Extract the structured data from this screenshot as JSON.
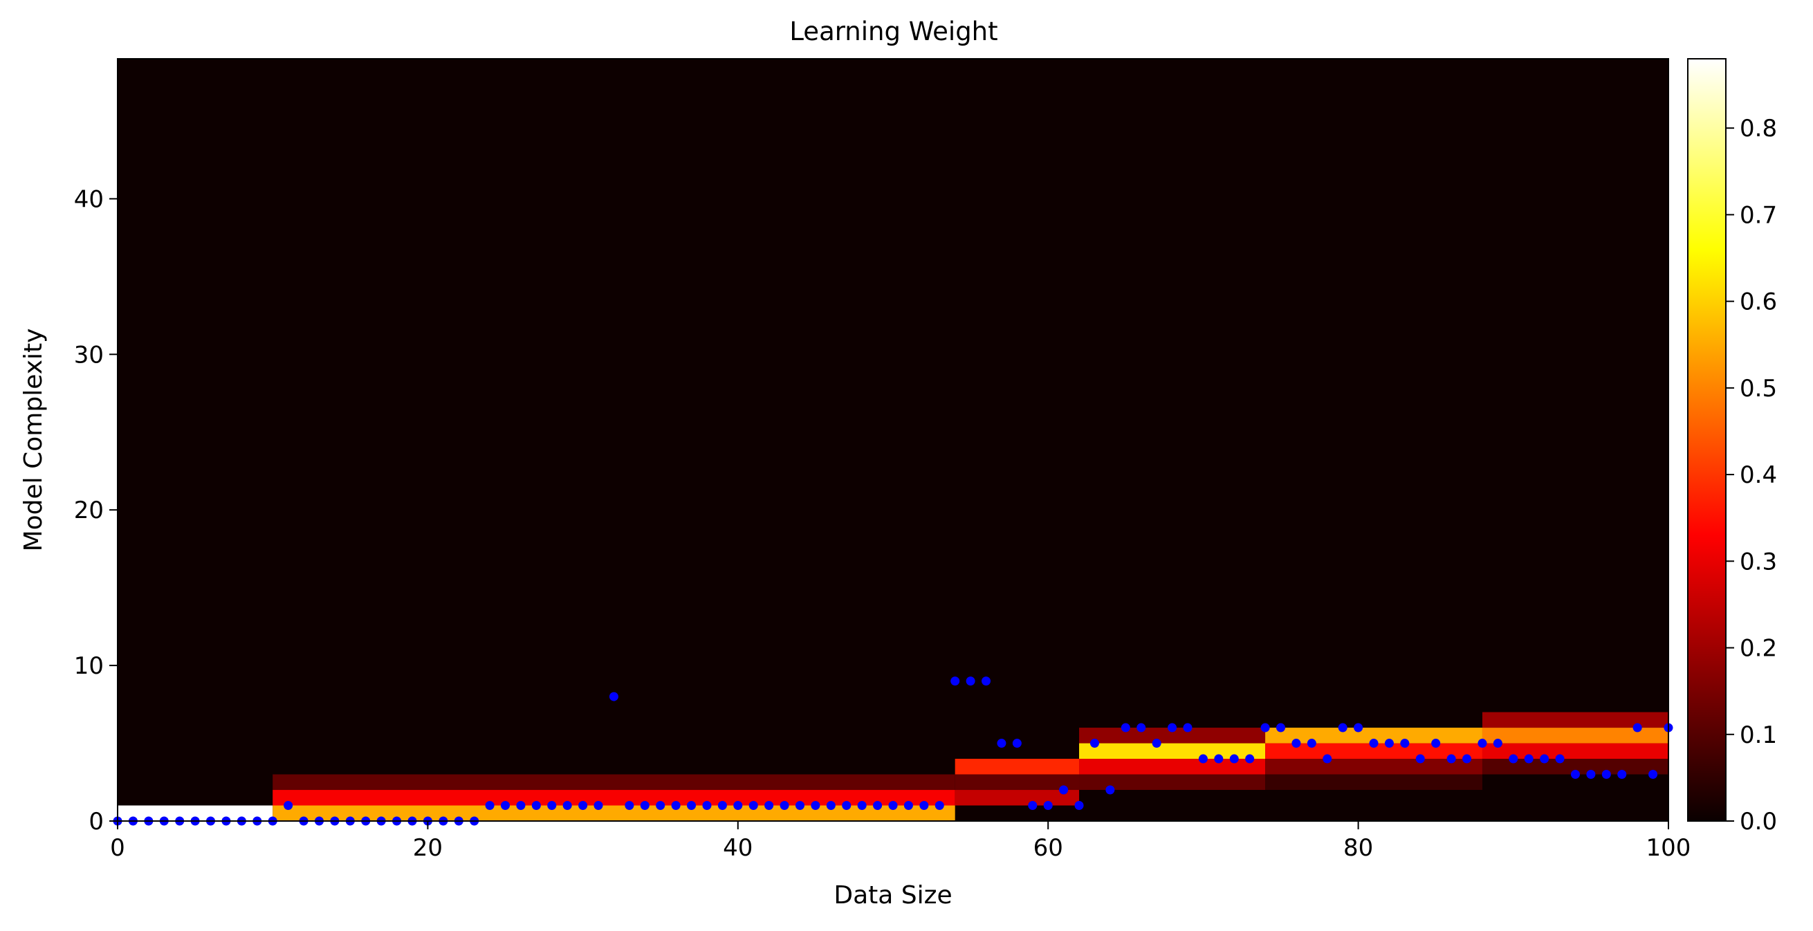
{
  "chart_data": {
    "type": "heatmap",
    "title": "Learning Weight",
    "xlabel": "Data Size",
    "ylabel": "Model Complexity",
    "xlim": [
      0,
      100
    ],
    "ylim": [
      0,
      49
    ],
    "x_ticks": [
      "0",
      "20",
      "40",
      "60",
      "80",
      "100"
    ],
    "y_ticks": [
      "0",
      "10",
      "20",
      "30",
      "40"
    ],
    "colorbar": {
      "colormap": "hot",
      "range": [
        0.0,
        0.88
      ],
      "ticks": [
        "0.0",
        "0.1",
        "0.2",
        "0.3",
        "0.4",
        "0.5",
        "0.6",
        "0.7",
        "0.8"
      ]
    },
    "heatmap_bands": [
      {
        "x_range": [
          0,
          10
        ],
        "rows": [
          {
            "y": 0,
            "value": 0.88
          }
        ]
      },
      {
        "x_range": [
          10,
          54
        ],
        "rows": [
          {
            "y": 0,
            "value": 0.55
          },
          {
            "y": 1,
            "value": 0.32
          },
          {
            "y": 2,
            "value": 0.12
          }
        ]
      },
      {
        "x_range": [
          54,
          62
        ],
        "rows": [
          {
            "y": 1,
            "value": 0.25
          },
          {
            "y": 2,
            "value": 0.12
          },
          {
            "y": 3,
            "value": 0.38
          }
        ]
      },
      {
        "x_range": [
          62,
          74
        ],
        "rows": [
          {
            "y": 2,
            "value": 0.12
          },
          {
            "y": 3,
            "value": 0.3
          },
          {
            "y": 4,
            "value": 0.62
          },
          {
            "y": 5,
            "value": 0.18
          }
        ]
      },
      {
        "x_range": [
          74,
          88
        ],
        "rows": [
          {
            "y": 2,
            "value": 0.06
          },
          {
            "y": 3,
            "value": 0.16
          },
          {
            "y": 4,
            "value": 0.35
          },
          {
            "y": 5,
            "value": 0.55
          }
        ]
      },
      {
        "x_range": [
          88,
          100
        ],
        "rows": [
          {
            "y": 3,
            "value": 0.1
          },
          {
            "y": 4,
            "value": 0.3
          },
          {
            "y": 5,
            "value": 0.5
          },
          {
            "y": 6,
            "value": 0.2
          }
        ]
      }
    ],
    "points": {
      "color": "#0000ff",
      "x": [
        0,
        1,
        2,
        3,
        4,
        5,
        6,
        7,
        8,
        9,
        10,
        11,
        12,
        13,
        14,
        15,
        16,
        17,
        18,
        19,
        20,
        21,
        22,
        23,
        24,
        25,
        26,
        27,
        28,
        29,
        30,
        31,
        32,
        33,
        34,
        35,
        36,
        37,
        38,
        39,
        40,
        41,
        42,
        43,
        44,
        45,
        46,
        47,
        48,
        49,
        50,
        51,
        52,
        53,
        54,
        55,
        56,
        57,
        58,
        59,
        60,
        61,
        62,
        63,
        64,
        65,
        66,
        67,
        68,
        69,
        70,
        71,
        72,
        73,
        74,
        75,
        76,
        77,
        78,
        79,
        80,
        81,
        82,
        83,
        84,
        85,
        86,
        87,
        88,
        89,
        90,
        91,
        92,
        93,
        94,
        95,
        96,
        97,
        98,
        99,
        100
      ],
      "y": [
        0,
        0,
        0,
        0,
        0,
        0,
        0,
        0,
        0,
        0,
        0,
        1,
        0,
        0,
        0,
        0,
        0,
        0,
        0,
        0,
        0,
        0,
        0,
        0,
        1,
        1,
        1,
        1,
        1,
        1,
        1,
        1,
        8,
        1,
        1,
        1,
        1,
        1,
        1,
        1,
        1,
        1,
        1,
        1,
        1,
        1,
        1,
        1,
        1,
        1,
        1,
        1,
        1,
        1,
        9,
        9,
        9,
        5,
        5,
        1,
        1,
        2,
        1,
        5,
        2,
        6,
        6,
        5,
        6,
        6,
        4,
        4,
        4,
        4,
        6,
        6,
        5,
        5,
        4,
        6,
        6,
        5,
        5,
        5,
        4,
        5,
        4,
        4,
        5,
        5,
        4,
        4,
        4,
        4,
        3,
        3,
        3,
        3,
        6,
        3,
        6
      ]
    }
  }
}
